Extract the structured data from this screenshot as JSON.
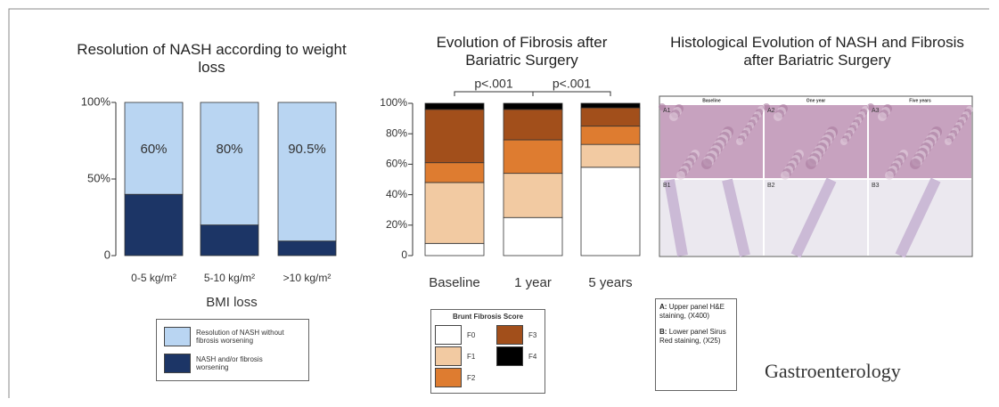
{
  "chart_data": [
    {
      "type": "stacked_bar",
      "title": "Resolution of NASH according to weight loss",
      "x_label": "BMI loss",
      "categories": [
        "0-5 kg/m²",
        "5-10 kg/m²",
        ">10 kg/m²"
      ],
      "series": [
        {
          "name": "NASH and/or fibrosis worsening",
          "color": "#1c3566",
          "values": [
            40,
            20,
            9.5
          ]
        },
        {
          "name": "Resolution of NASH without fibrosis worsening",
          "color": "#b9d5f2",
          "values": [
            60,
            80,
            90.5
          ],
          "value_labels": [
            "60%",
            "80%",
            "90.5%"
          ]
        }
      ],
      "ylim": [
        0,
        100
      ],
      "yticks": [
        0,
        {
          "value": 50,
          "label": "50%"
        },
        {
          "value": 100,
          "label": "100%"
        }
      ]
    },
    {
      "type": "stacked_bar",
      "title": "Evolution of Fibrosis after Bariatric Surgery",
      "legend_title": "Brunt Fibrosis Score",
      "categories": [
        "Baseline",
        "1 year",
        "5 years"
      ],
      "series": [
        {
          "name": "F0",
          "color": "#ffffff",
          "values": [
            8,
            25,
            58
          ]
        },
        {
          "name": "F1",
          "color": "#f2caa2",
          "values": [
            40,
            29,
            15
          ]
        },
        {
          "name": "F2",
          "color": "#de7c30",
          "values": [
            13,
            22,
            12
          ]
        },
        {
          "name": "F3",
          "color": "#a24f1b",
          "values": [
            35,
            20,
            12
          ]
        },
        {
          "name": "F4",
          "color": "#000000",
          "values": [
            4,
            4,
            3
          ]
        }
      ],
      "ylim": [
        0,
        100
      ],
      "yticks": [
        0,
        {
          "value": 20,
          "label": "20%"
        },
        {
          "value": 40,
          "label": "40%"
        },
        {
          "value": 60,
          "label": "60%"
        },
        {
          "value": 80,
          "label": "80%"
        },
        {
          "value": 100,
          "label": "100%"
        }
      ],
      "annotations": [
        "p<.001",
        "p<.001"
      ]
    }
  ],
  "panel": {
    "title": "Histological Evolution of NASH and Fibrosis after Bariatric Surgery",
    "columns": [
      "Baseline",
      "One year",
      "Five years"
    ],
    "tiles": [
      "A1",
      "A2",
      "A3",
      "B1",
      "B2",
      "B3"
    ],
    "notes": [
      {
        "key": "A:",
        "text": "Upper panel H&E staining, (X400)"
      },
      {
        "key": "B:",
        "text": "Lower panel Sirus Red staining, (X25)"
      }
    ]
  },
  "journal": "Gastroenterology"
}
